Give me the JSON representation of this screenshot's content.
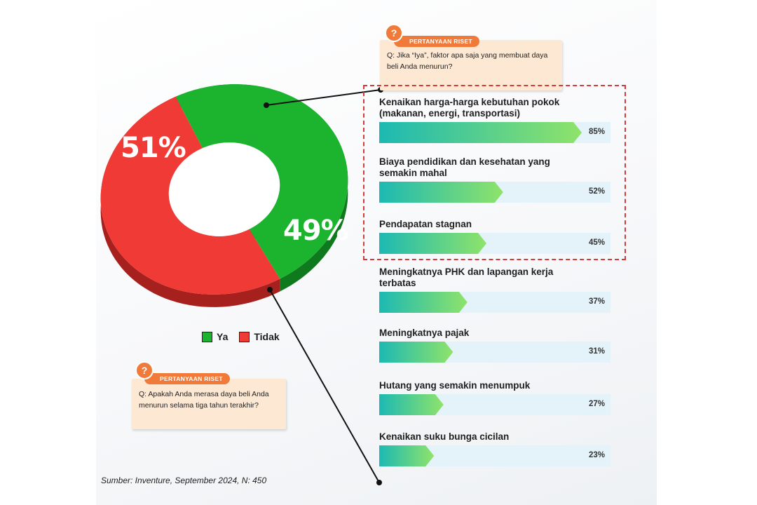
{
  "colors": {
    "ya": "#1cb42f",
    "ya_side": "#0f7a1d",
    "tidak": "#f03a35",
    "tidak_side": "#a6201d",
    "accent": "#f07a3a",
    "bar_start": "#1cb9b3",
    "bar_end": "#8fe36a",
    "track": "#e4f2f9",
    "highlight": "#d23b3b"
  },
  "top_question": {
    "icon": "question-icon",
    "badge": "PERTANYAAN RISET",
    "text": "Q: Jika “Iya”, faktor apa saja yang membuat daya beli Anda menurun?"
  },
  "bottom_question": {
    "icon": "question-icon",
    "badge": "PERTANYAAN RISET",
    "text": "Q: Apakah Anda merasa daya beli Anda menurun selama tiga tahun terakhir?"
  },
  "source": "Sumber: Inventure, September 2024, N: 450",
  "chart_data": [
    {
      "type": "pie",
      "style": "donut",
      "categories": [
        "Ya",
        "Tidak"
      ],
      "values": [
        49,
        51
      ],
      "labels": [
        "49%",
        "51%"
      ],
      "legend": [
        "Ya",
        "Tidak"
      ],
      "legend_position": "bottom"
    },
    {
      "type": "bar",
      "orientation": "horizontal",
      "categories": [
        "Kenaikan harga-harga kebutuhan pokok (makanan, energi, transportasi)",
        "Biaya pendidikan dan kesehatan yang semakin mahal",
        "Pendapatan stagnan",
        "Meningkatnya PHK dan lapangan kerja terbatas",
        "Meningkatnya pajak",
        "Hutang yang semakin menumpuk",
        "Kenaikan suku bunga cicilan"
      ],
      "values": [
        85,
        52,
        45,
        37,
        31,
        27,
        23
      ],
      "value_labels": [
        "85%",
        "52%",
        "45%",
        "37%",
        "31%",
        "27%",
        "23%"
      ],
      "xlim": [
        0,
        100
      ],
      "highlighted": [
        0,
        1,
        2
      ]
    }
  ]
}
